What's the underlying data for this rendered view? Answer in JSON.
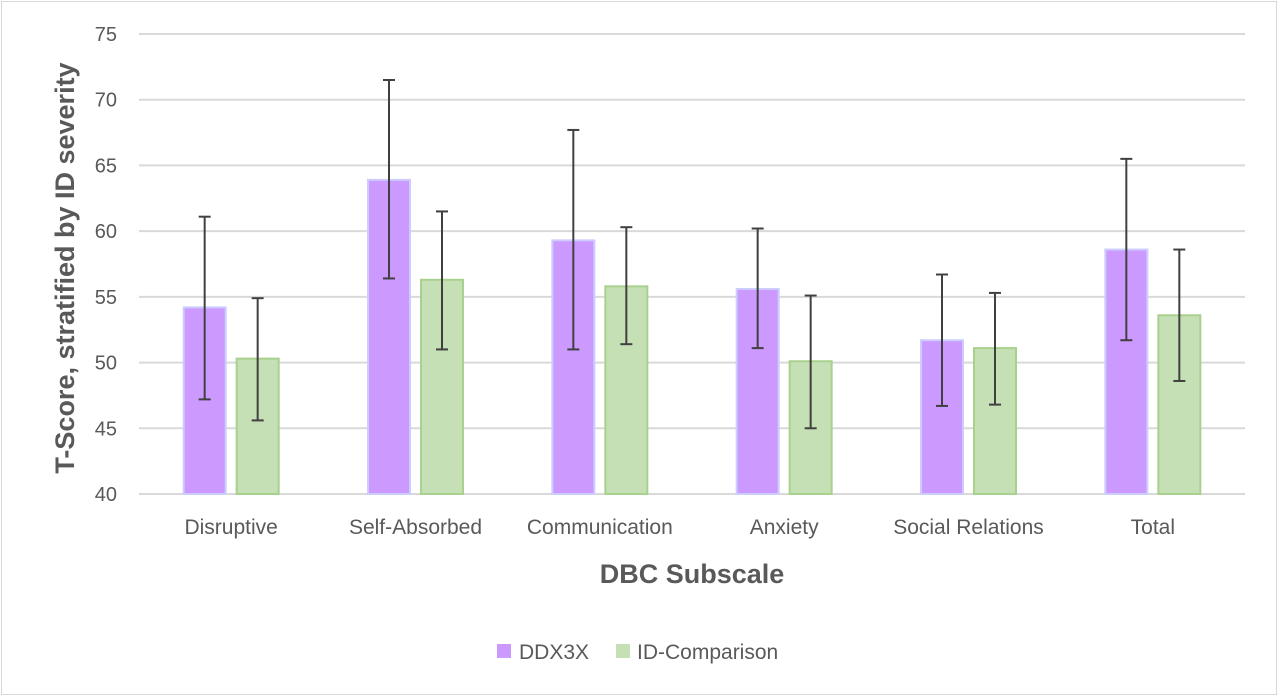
{
  "chart_data": {
    "type": "bar",
    "title": "",
    "xlabel": "DBC Subscale",
    "ylabel": "T-Score, stratified by ID severity",
    "ylim": [
      40,
      75
    ],
    "yticks": [
      40,
      45,
      50,
      55,
      60,
      65,
      70,
      75
    ],
    "grid": true,
    "legend_position": "bottom",
    "categories": [
      "Disruptive",
      "Self-Absorbed",
      "Communication",
      "Anxiety",
      "Social Relations",
      "Total"
    ],
    "series": [
      {
        "name": "DDX3X",
        "color": "#cc99ff",
        "border_color": "#ccccff",
        "values": [
          54.2,
          63.9,
          59.3,
          55.6,
          51.7,
          58.6
        ],
        "error_low": [
          47.2,
          56.4,
          51.0,
          51.1,
          46.7,
          51.7
        ],
        "error_high": [
          61.1,
          71.5,
          67.7,
          60.2,
          56.7,
          65.5
        ]
      },
      {
        "name": "ID-Comparison",
        "color": "#c5e0b4",
        "border_color": "#a9d18e",
        "values": [
          50.3,
          56.3,
          55.8,
          50.1,
          51.1,
          53.6
        ],
        "error_low": [
          45.6,
          51.0,
          51.4,
          45.0,
          46.8,
          48.6
        ],
        "error_high": [
          54.9,
          61.5,
          60.3,
          55.1,
          55.3,
          58.6
        ]
      }
    ]
  }
}
